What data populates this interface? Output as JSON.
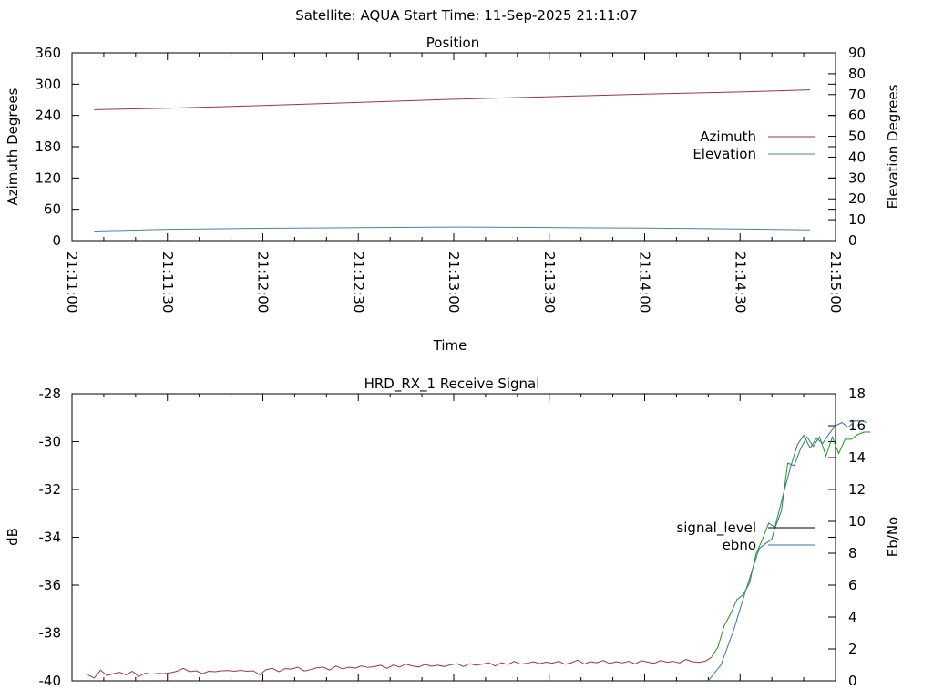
{
  "figure": {
    "title": "Satellite: AQUA    Start Time: 11-Sep-2025 21:11:07"
  },
  "chart_data": [
    {
      "type": "line",
      "title": "Position",
      "xlabel": "Time",
      "ylabel": "Azimuth Degrees",
      "y2label": "Elevation Degrees",
      "x_tick_labels": [
        "21:11:00",
        "21:11:30",
        "21:12:00",
        "21:12:30",
        "21:13:00",
        "21:13:30",
        "21:14:00",
        "21:14:30",
        "21:15:00"
      ],
      "x_range_seconds": [
        0,
        240
      ],
      "y_ticks": [
        "0",
        "60",
        "120",
        "180",
        "240",
        "300",
        "360"
      ],
      "ylim": [
        0,
        360
      ],
      "y2_ticks": [
        "0",
        "10",
        "20",
        "30",
        "40",
        "50",
        "60",
        "70",
        "80",
        "90"
      ],
      "y2lim": [
        0,
        90
      ],
      "legend_position": "right",
      "series": [
        {
          "name": "Azimuth",
          "axis": "y",
          "color": "#a0353a",
          "x": [
            7,
            30,
            60,
            90,
            120,
            150,
            180,
            210,
            232
          ],
          "values": [
            251,
            254,
            259,
            265,
            271,
            276,
            281,
            285,
            289
          ]
        },
        {
          "name": "Elevation",
          "axis": "y2",
          "color": "#4a7fb0",
          "x": [
            7,
            30,
            60,
            90,
            120,
            150,
            180,
            210,
            232
          ],
          "values": [
            4.6,
            5.4,
            5.9,
            6.2,
            6.5,
            6.3,
            6.0,
            5.6,
            5.1
          ]
        }
      ]
    },
    {
      "type": "line",
      "title": "HRD_RX_1 Receive Signal",
      "xlabel": "",
      "ylabel": "dB",
      "y2label": "Eb/No",
      "x_range_seconds": [
        0,
        240
      ],
      "y_ticks": [
        "-40",
        "-38",
        "-36",
        "-34",
        "-32",
        "-30",
        "-28"
      ],
      "ylim": [
        -40,
        -28
      ],
      "y2_ticks": [
        "0",
        "2",
        "4",
        "6",
        "8",
        "10",
        "12",
        "14",
        "16",
        "18"
      ],
      "y2lim": [
        0,
        18
      ],
      "legend_position": "right",
      "series": [
        {
          "name": "signal_level",
          "axis": "y",
          "color": "#000000",
          "x": [],
          "values": []
        },
        {
          "name": "ebno",
          "axis": "y2",
          "color": "#3a6fb0",
          "x": [
            200,
            204,
            208,
            212,
            216,
            220,
            224,
            226,
            228,
            230,
            232,
            234,
            236,
            238,
            240,
            242,
            244,
            246,
            248,
            250
          ],
          "values": [
            0.0,
            1.0,
            3.2,
            5.8,
            8.3,
            8.9,
            12.0,
            13.5,
            14.8,
            15.4,
            14.6,
            15.2,
            14.9,
            15.5,
            16.0,
            16.2,
            15.9,
            16.3,
            16.3,
            16.2
          ]
        }
      ],
      "extra_lines": [
        {
          "color": "#a0353a",
          "axis": "y",
          "x": [
            5,
            7,
            9,
            11,
            13,
            15,
            17,
            19,
            21,
            23,
            25,
            27,
            29,
            31,
            33,
            35,
            37,
            39,
            41,
            43,
            45,
            47,
            49,
            51,
            53,
            55,
            57,
            59,
            61,
            63,
            65,
            67,
            69,
            71,
            73,
            75,
            77,
            79,
            81,
            83,
            85,
            87,
            89,
            91,
            93,
            95,
            97,
            99,
            101,
            103,
            105,
            107,
            109,
            111,
            113,
            115,
            117,
            119,
            121,
            123,
            125,
            127,
            129,
            131,
            133,
            135,
            137,
            139,
            141,
            143,
            145,
            147,
            149,
            151,
            153,
            155,
            157,
            159,
            161,
            163,
            165,
            167,
            169,
            171,
            173,
            175,
            177,
            179,
            181,
            183,
            185,
            187,
            189,
            191,
            193,
            195,
            197,
            199,
            201
          ],
          "values": [
            -39.75,
            -39.88,
            -39.55,
            -39.78,
            -39.7,
            -39.64,
            -39.75,
            -39.6,
            -39.82,
            -39.68,
            -39.72,
            -39.69,
            -39.7,
            -39.66,
            -39.6,
            -39.48,
            -39.62,
            -39.58,
            -39.7,
            -39.6,
            -39.62,
            -39.58,
            -39.57,
            -39.6,
            -39.56,
            -39.6,
            -39.58,
            -39.75,
            -39.53,
            -39.48,
            -39.62,
            -39.49,
            -39.51,
            -39.43,
            -39.59,
            -39.53,
            -39.45,
            -39.43,
            -39.55,
            -39.38,
            -39.5,
            -39.43,
            -39.47,
            -39.38,
            -39.44,
            -39.41,
            -39.35,
            -39.48,
            -39.34,
            -39.42,
            -39.3,
            -39.38,
            -39.42,
            -39.31,
            -39.39,
            -39.35,
            -39.4,
            -39.33,
            -39.28,
            -39.4,
            -39.28,
            -39.35,
            -39.3,
            -39.24,
            -39.38,
            -39.24,
            -39.32,
            -39.19,
            -39.3,
            -39.27,
            -39.2,
            -39.28,
            -39.22,
            -39.26,
            -39.18,
            -39.31,
            -39.24,
            -39.13,
            -39.3,
            -39.2,
            -39.24,
            -39.15,
            -39.28,
            -39.2,
            -39.25,
            -39.18,
            -39.29,
            -39.16,
            -39.22,
            -39.27,
            -39.15,
            -39.22,
            -39.19,
            -39.25,
            -39.11,
            -39.2,
            -39.23,
            -39.18,
            -39.02
          ]
        },
        {
          "color": "#1a9a1a",
          "axis": "y",
          "x": [
            201,
            203,
            205,
            207,
            209,
            211,
            213,
            215,
            217,
            219,
            221,
            223,
            225,
            227,
            229,
            231,
            233,
            235,
            237,
            239,
            241,
            243,
            245,
            247,
            249,
            251
          ],
          "values": [
            -39.0,
            -38.6,
            -37.7,
            -37.2,
            -36.6,
            -36.4,
            -35.9,
            -34.7,
            -34.1,
            -33.4,
            -33.6,
            -32.9,
            -30.9,
            -31.0,
            -30.3,
            -29.8,
            -30.2,
            -29.8,
            -30.6,
            -29.8,
            -30.5,
            -29.9,
            -29.9,
            -29.7,
            -29.6,
            -29.6
          ]
        }
      ]
    }
  ]
}
